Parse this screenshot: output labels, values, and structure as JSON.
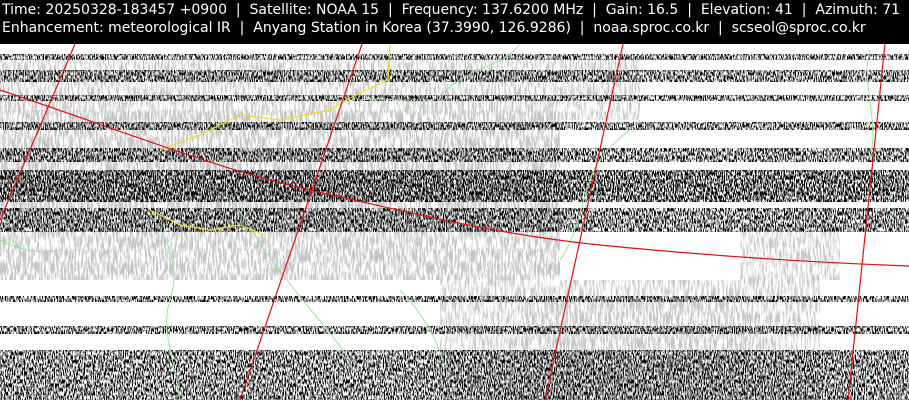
{
  "header": {
    "lines": [
      "Time: 20250328-183457 +0900  |  Satellite: NOAA 15  |  Frequency: 137.6200 MHz  |  Gain: 16.5  |  Elevation: 41  |  Azimuth: 71",
      "Enhancement: meteorological IR  |  Anyang Station in Korea (37.3990, 126.9286)  |  noaa.sproc.co.kr  |  scseol@sproc.co.kr"
    ]
  }
}
